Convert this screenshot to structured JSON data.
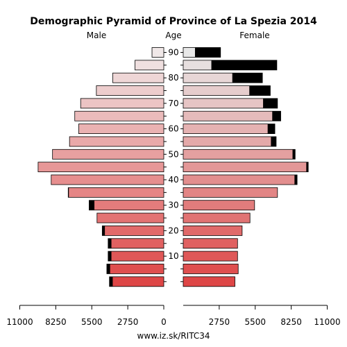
{
  "chart_data": {
    "type": "bar",
    "title": "Demographic Pyramid of Province of La Spezia 2014",
    "left_label": "Male",
    "center_label": "Age",
    "right_label": "Female",
    "footer": "www.iz.sk/RITC34",
    "xlim": [
      0,
      11000
    ],
    "x_ticks": [
      11000,
      8250,
      5500,
      2750,
      0,
      2750,
      5500,
      8250,
      11000
    ],
    "age_groups": [
      "0-4",
      "5-9",
      "10-14",
      "15-19",
      "20-24",
      "25-29",
      "30-34",
      "35-39",
      "40-44",
      "45-49",
      "50-54",
      "55-59",
      "60-64",
      "65-69",
      "70-74",
      "75-79",
      "80-84",
      "85-89",
      "90+"
    ],
    "age_tick_labels": [
      {
        "label": "10",
        "index": 2
      },
      {
        "label": "20",
        "index": 4
      },
      {
        "label": "30",
        "index": 6
      },
      {
        "label": "40",
        "index": 8
      },
      {
        "label": "50",
        "index": 10
      },
      {
        "label": "60",
        "index": 12
      },
      {
        "label": "70",
        "index": 14
      },
      {
        "label": "80",
        "index": 16
      },
      {
        "label": "90",
        "index": 18
      }
    ],
    "series": [
      {
        "name": "Male",
        "values": [
          4150,
          4350,
          4250,
          4250,
          4700,
          5100,
          5700,
          7300,
          8600,
          9600,
          8500,
          7200,
          6500,
          6800,
          6350,
          5150,
          3900,
          2200,
          900
        ],
        "excess": [
          250,
          250,
          250,
          250,
          200,
          0,
          400,
          50,
          0,
          0,
          0,
          0,
          0,
          0,
          0,
          0,
          0,
          0,
          0
        ]
      },
      {
        "name": "Female",
        "values": [
          3950,
          4200,
          4150,
          4150,
          4500,
          5100,
          5450,
          7200,
          8700,
          9550,
          8550,
          7100,
          7000,
          7450,
          7200,
          6650,
          6050,
          7150,
          2850
        ],
        "excess": [
          0,
          0,
          0,
          0,
          0,
          0,
          0,
          0,
          200,
          150,
          200,
          400,
          550,
          650,
          1100,
          1600,
          2300,
          5000,
          1950
        ]
      }
    ]
  }
}
